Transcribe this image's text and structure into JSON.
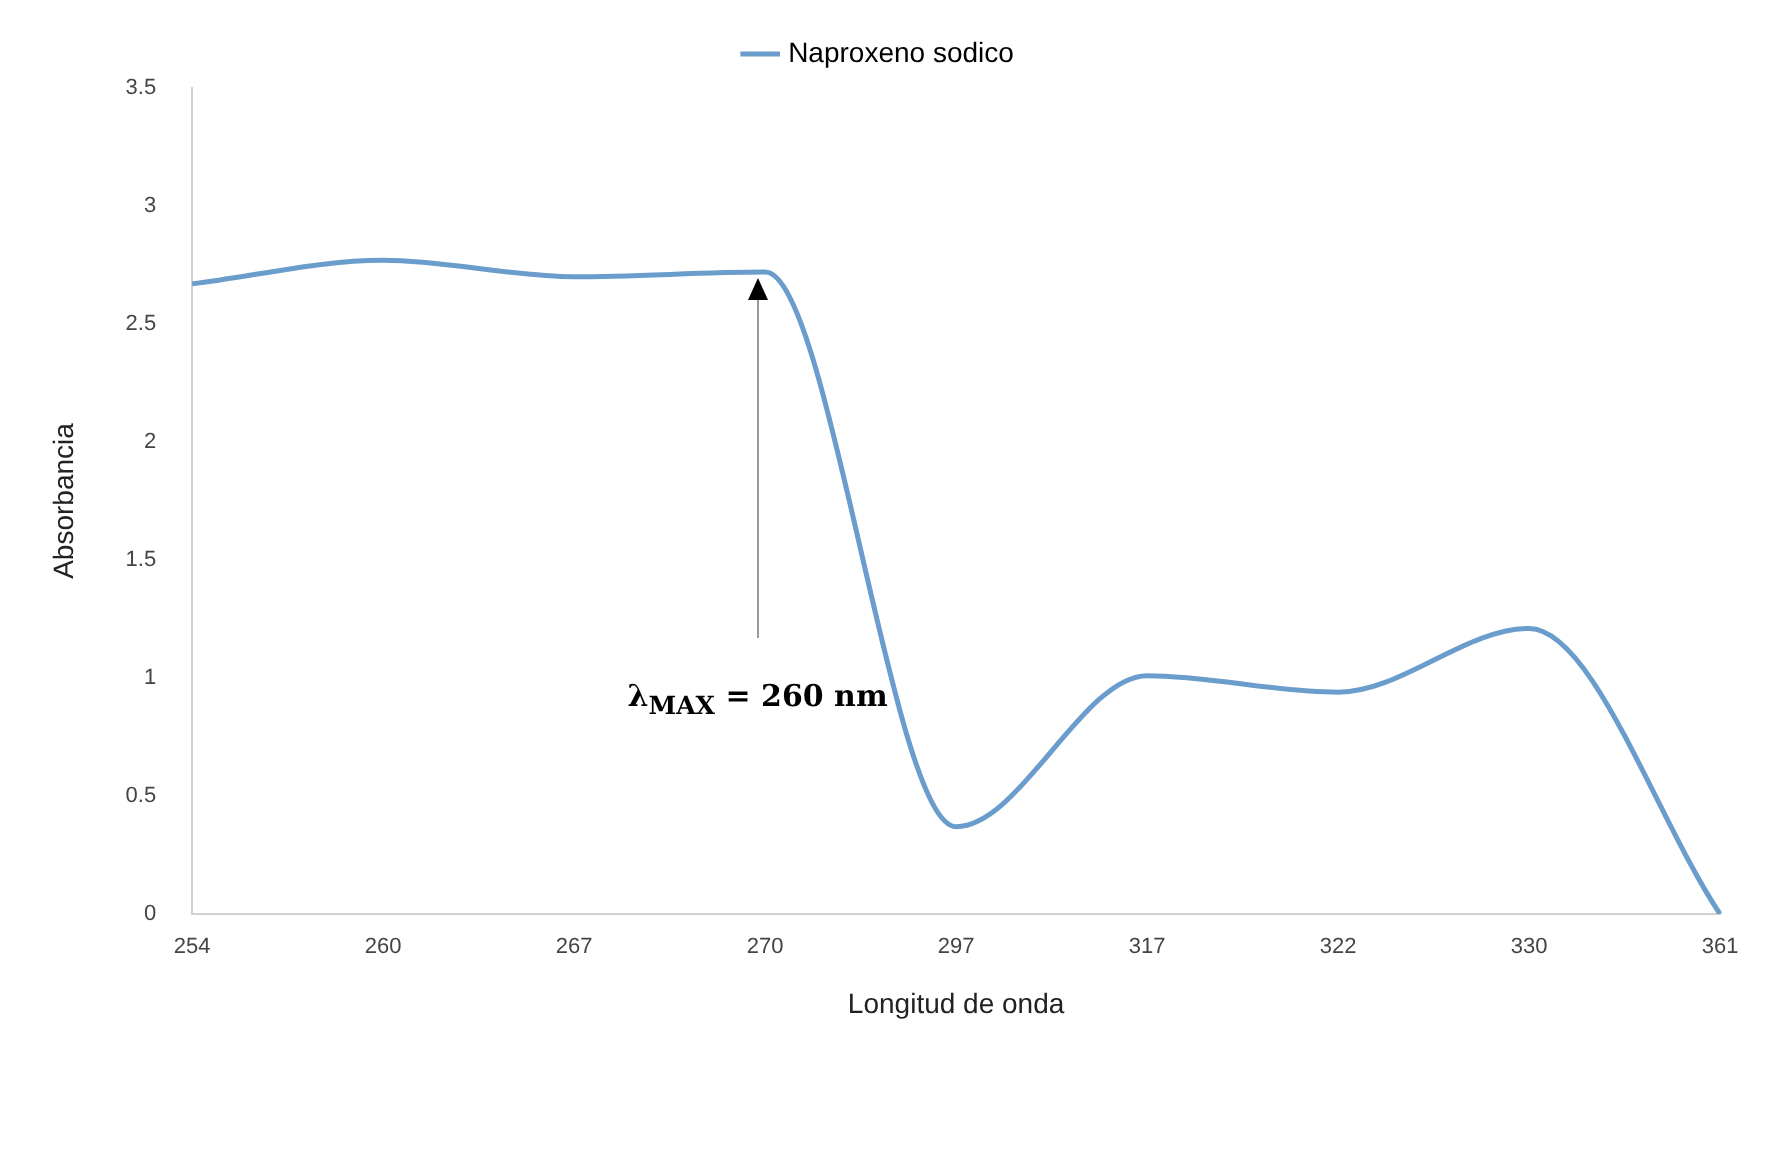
{
  "chart_data": {
    "type": "line",
    "xlabel": "Longitud de onda",
    "ylabel": "Absorbancia",
    "categories": [
      "254",
      "260",
      "267",
      "270",
      "297",
      "317",
      "322",
      "330",
      "361"
    ],
    "series": [
      {
        "name": "Naproxeno sodico",
        "color": "#6a9ccc",
        "values": [
          2.67,
          2.77,
          2.7,
          2.72,
          0.37,
          1.01,
          0.94,
          1.21,
          0
        ]
      }
    ],
    "ylim": [
      0,
      3.5
    ],
    "yticks": [
      0,
      0.5,
      1,
      1.5,
      2,
      2.5,
      3,
      3.5
    ],
    "grid": false,
    "legend": "top",
    "marker": "none",
    "annotations": [
      "λ$_{MAX}$ = 260 nm"
    ]
  }
}
